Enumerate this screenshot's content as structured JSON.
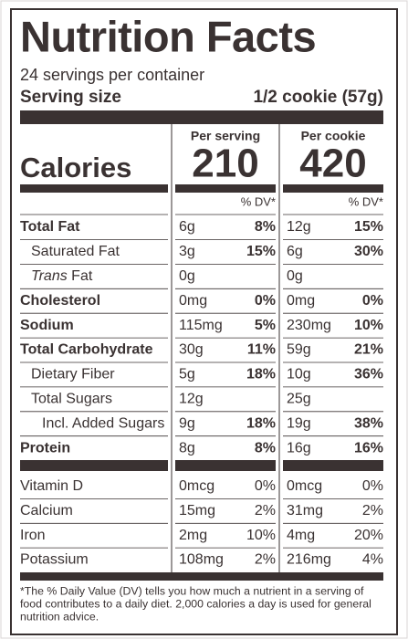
{
  "header": {
    "title": "Nutrition Facts",
    "servings": "24 servings per container",
    "serving_size_label": "Serving size",
    "serving_size": "1/2 cookie (57g)"
  },
  "calories_label": "Calories",
  "columns": [
    {
      "heading": "Per serving",
      "calories": "210",
      "dv_heading": "% DV*"
    },
    {
      "heading": "Per cookie",
      "calories": "420",
      "dv_heading": "% DV*"
    }
  ],
  "nutrients": [
    {
      "label": "Total Fat",
      "bold": true,
      "indent": 0,
      "values": [
        {
          "amount": "6g",
          "dv": "8%"
        },
        {
          "amount": "12g",
          "dv": "15%"
        }
      ]
    },
    {
      "label": "Saturated Fat",
      "bold": false,
      "indent": 1,
      "values": [
        {
          "amount": "3g",
          "dv": "15%"
        },
        {
          "amount": "6g",
          "dv": "30%"
        }
      ]
    },
    {
      "prefix": "Trans",
      "label": "Fat",
      "bold": false,
      "indent": 1,
      "values": [
        {
          "amount": "0g"
        },
        {
          "amount": "0g"
        }
      ]
    },
    {
      "label": "Cholesterol",
      "bold": true,
      "indent": 0,
      "values": [
        {
          "amount": "0mg",
          "dv": "0%"
        },
        {
          "amount": "0mg",
          "dv": "0%"
        }
      ]
    },
    {
      "label": "Sodium",
      "bold": true,
      "indent": 0,
      "values": [
        {
          "amount": "115mg",
          "dv": "5%"
        },
        {
          "amount": "230mg",
          "dv": "10%"
        }
      ]
    },
    {
      "label": "Total Carbohydrate",
      "bold": true,
      "indent": 0,
      "values": [
        {
          "amount": "30g",
          "dv": "11%"
        },
        {
          "amount": "59g",
          "dv": "21%"
        }
      ]
    },
    {
      "label": "Dietary Fiber",
      "bold": false,
      "indent": 1,
      "values": [
        {
          "amount": "5g",
          "dv": "18%"
        },
        {
          "amount": "10g",
          "dv": "36%"
        }
      ]
    },
    {
      "label": "Total Sugars",
      "bold": false,
      "indent": 1,
      "values": [
        {
          "amount": "12g"
        },
        {
          "amount": "25g"
        }
      ]
    },
    {
      "label": "Incl. Added Sugars",
      "bold": false,
      "indent": 2,
      "values": [
        {
          "amount": "9g",
          "dv": "18%"
        },
        {
          "amount": "19g",
          "dv": "38%"
        }
      ]
    },
    {
      "label": "Protein",
      "bold": true,
      "indent": 0,
      "values": [
        {
          "amount": "8g",
          "dv": "8%"
        },
        {
          "amount": "16g",
          "dv": "16%"
        }
      ]
    }
  ],
  "vitamins": [
    {
      "label": "Vitamin D",
      "values": [
        {
          "amount": "0mcg",
          "dv": "0%"
        },
        {
          "amount": "0mcg",
          "dv": "0%"
        }
      ]
    },
    {
      "label": "Calcium",
      "values": [
        {
          "amount": "15mg",
          "dv": "2%"
        },
        {
          "amount": "31mg",
          "dv": "2%"
        }
      ]
    },
    {
      "label": "Iron",
      "values": [
        {
          "amount": "2mg",
          "dv": "10%"
        },
        {
          "amount": "4mg",
          "dv": "20%"
        }
      ]
    },
    {
      "label": "Potassium",
      "values": [
        {
          "amount": "108mg",
          "dv": "2%"
        },
        {
          "amount": "216mg",
          "dv": "4%"
        }
      ]
    }
  ],
  "footnote": [
    "*The % Daily Value (DV) tells you how much a nutrient in a serving of",
    "food contributes to a daily diet. 2,000 calories a day is used for general",
    "nutrition advice."
  ]
}
